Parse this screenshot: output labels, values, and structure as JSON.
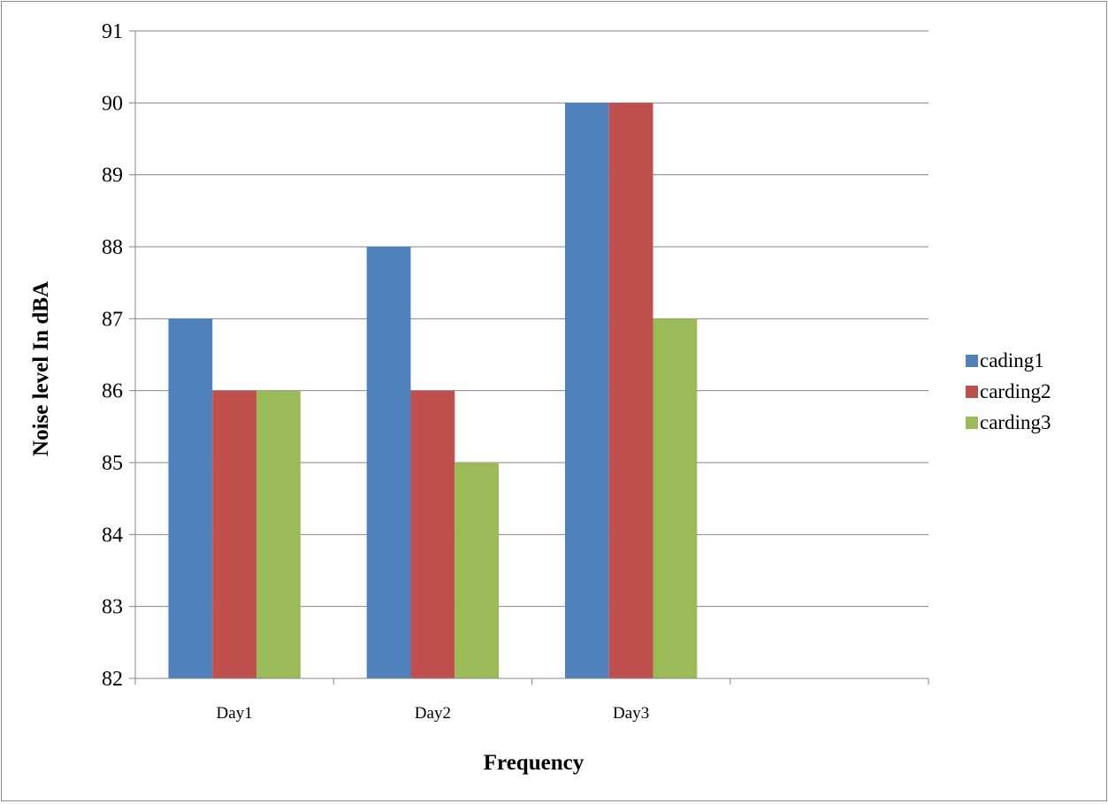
{
  "chart_data": {
    "type": "bar",
    "title": "",
    "xlabel": "Frequency",
    "ylabel": "Noise level In dBA",
    "categories": [
      "Day1",
      "Day2",
      "Day3",
      ""
    ],
    "series": [
      {
        "name": "cading1",
        "color": "#4f81bd",
        "values": [
          87,
          88,
          90,
          null
        ]
      },
      {
        "name": "carding2",
        "color": "#c0504d",
        "values": [
          86,
          86,
          90,
          null
        ]
      },
      {
        "name": "carding3",
        "color": "#9bbb59",
        "values": [
          86,
          85,
          87,
          null
        ]
      }
    ],
    "ylim": [
      82,
      91
    ],
    "yticks": [
      82,
      83,
      84,
      85,
      86,
      87,
      88,
      89,
      90,
      91
    ],
    "grid": true,
    "legend_position": "right"
  }
}
